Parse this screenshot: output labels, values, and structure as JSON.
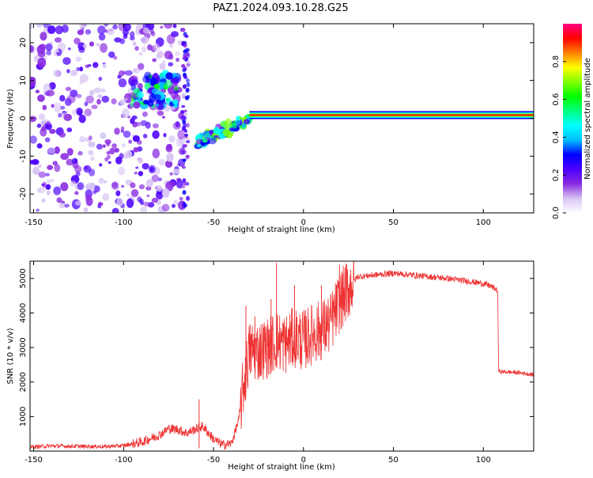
{
  "figure": {
    "title": "PAZ1.2024.093.10.28.G25"
  },
  "chart_data": [
    {
      "type": "heatmap",
      "xlabel": "Height of straight line (km)",
      "ylabel": "Frequency (Hz)",
      "xlim": [
        -152,
        128
      ],
      "ylim": [
        -25,
        25
      ],
      "x_ticks": [
        -150,
        -100,
        -50,
        0,
        50,
        100
      ],
      "y_ticks": [
        -20,
        -10,
        0,
        10,
        20
      ],
      "colorbar": {
        "label": "Normalized spectral amplitude",
        "range": [
          0,
          1
        ],
        "ticks": [
          0.0,
          0.2,
          0.4,
          0.6,
          0.8
        ],
        "colors": [
          "#ffffff",
          "#d8c4f4",
          "#8a2be2",
          "#4b00ff",
          "#0000ff",
          "#00bfff",
          "#00ffff",
          "#00ff80",
          "#00ff00",
          "#80ff00",
          "#ffff00",
          "#ff8000",
          "#ff0000",
          "#ff0080"
        ]
      },
      "regions": [
        {
          "description": "scattered weak noise blobs",
          "x_range": [
            -152,
            -65
          ],
          "y_range": [
            -25,
            25
          ],
          "amplitude": 0.15
        },
        {
          "description": "cluster",
          "x_range": [
            -95,
            -70
          ],
          "y_range": [
            3,
            12
          ],
          "amplitude": 0.35
        },
        {
          "description": "vertical streak",
          "x_range": [
            -67,
            -64
          ],
          "y_range": [
            -25,
            24
          ],
          "amplitude": 0.2
        },
        {
          "description": "descending tone",
          "x_range": [
            -60,
            -30
          ],
          "y_range": [
            -8,
            0
          ],
          "amplitude": 0.4
        },
        {
          "description": "carrier line",
          "x_range": [
            -30,
            128
          ],
          "y_range": [
            0.5,
            1.2
          ],
          "amplitude": 0.9
        }
      ]
    },
    {
      "type": "line",
      "xlabel": "Height of straight line (km)",
      "ylabel": "SNR (10 * v/v)",
      "xlim": [
        -152,
        128
      ],
      "ylim": [
        0,
        5500
      ],
      "x_ticks": [
        -150,
        -100,
        -50,
        0,
        50,
        100
      ],
      "y_ticks": [
        1000,
        2000,
        3000,
        4000,
        5000
      ],
      "color": "#ee3333",
      "envelope": {
        "x": [
          -152,
          -140,
          -130,
          -110,
          -100,
          -90,
          -80,
          -75,
          -70,
          -65,
          -60,
          -56,
          -50,
          -45,
          -40,
          -36,
          -33,
          -30,
          -25,
          -20,
          -15,
          -10,
          -5,
          0,
          5,
          10,
          15,
          20,
          25,
          30,
          40,
          50,
          60,
          70,
          80,
          90,
          100,
          104,
          108,
          108.5,
          110,
          120,
          128
        ],
        "y": [
          120,
          150,
          140,
          130,
          160,
          260,
          470,
          650,
          630,
          520,
          640,
          720,
          350,
          180,
          220,
          900,
          2000,
          2900,
          2900,
          3000,
          3200,
          3100,
          3300,
          3200,
          3400,
          3500,
          3700,
          4300,
          4700,
          5050,
          5100,
          5150,
          5100,
          5050,
          5000,
          4930,
          4850,
          4780,
          4650,
          2320,
          2300,
          2270,
          2210
        ]
      },
      "spikes": [
        {
          "x": -58,
          "y": 1500
        },
        {
          "x": -32,
          "y": 4200
        },
        {
          "x": -27,
          "y": 3900
        },
        {
          "x": -18,
          "y": 4400
        },
        {
          "x": -15,
          "y": 5450
        },
        {
          "x": -5,
          "y": 4800
        },
        {
          "x": 10,
          "y": 4800
        },
        {
          "x": 20,
          "y": 5400
        },
        {
          "x": 24,
          "y": 5400
        }
      ]
    }
  ]
}
